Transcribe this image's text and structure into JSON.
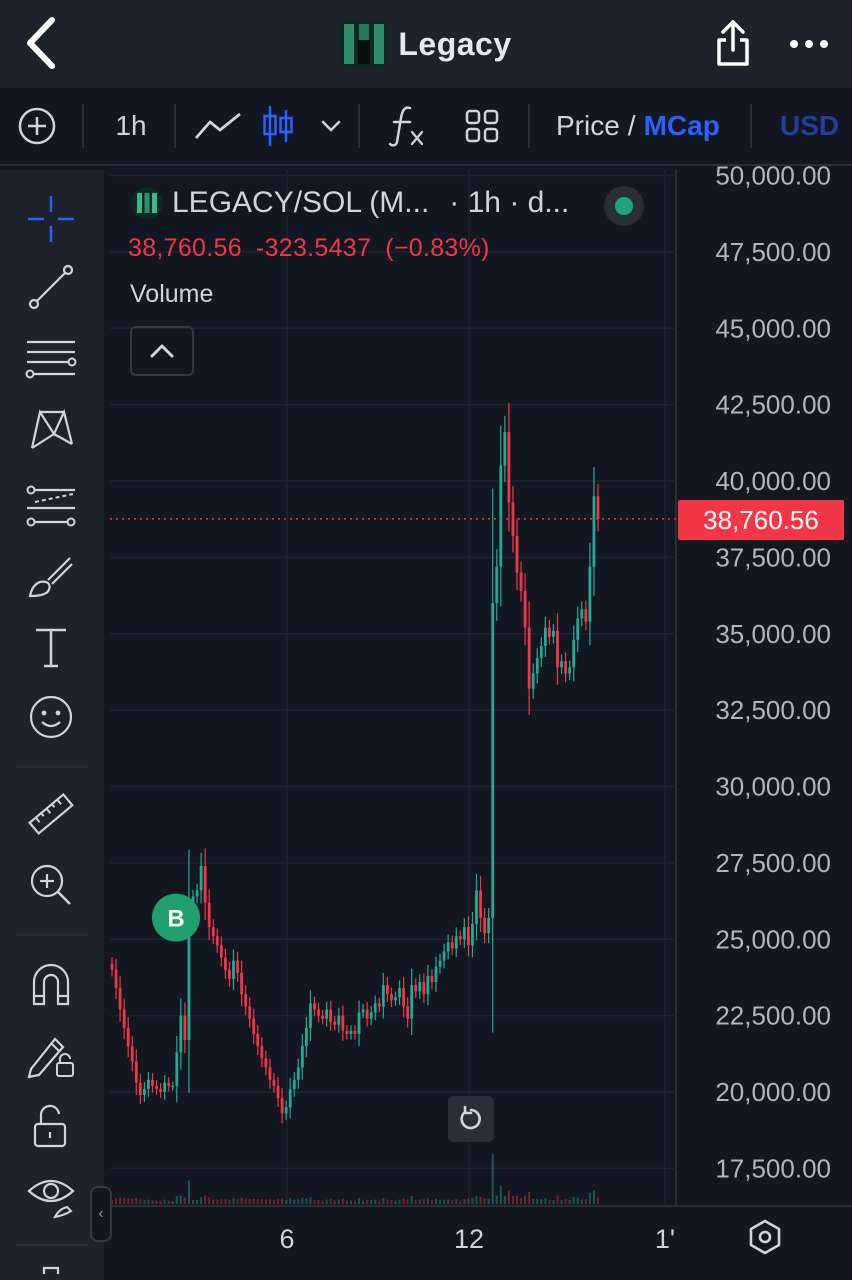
{
  "header": {
    "title": "Legacy",
    "back_icon": "chevron-left-icon",
    "share_icon": "share-icon",
    "more_icon": "more-horizontal-icon"
  },
  "toolbar": {
    "timeframe": "1h",
    "price_label": "Price",
    "separator": "/",
    "mcap_label": "MCap",
    "currency": "USD"
  },
  "legend": {
    "symbol": "LEGACY/SOL (M...",
    "timeframe": "· 1h · d...",
    "last": "38,760.56",
    "change": "-323.5437",
    "change_pct": "(−0.83%)",
    "volume_label": "Volume"
  },
  "chart_data": {
    "type": "candlestick",
    "y_ticks": [
      "50,000.00",
      "47,500.00",
      "45,000.00",
      "42,500.00",
      "40,000.00",
      "37,500.00",
      "35,000.00",
      "32,500.00",
      "30,000.00",
      "27,500.00",
      "25,000.00",
      "22,500.00",
      "20,000.00",
      "17,500.00"
    ],
    "x_ticks": [
      "6",
      "12",
      "1'"
    ],
    "current_price_label": "38,760.56",
    "current_price": 38760.56,
    "marker": {
      "label": "B",
      "price": 24400
    },
    "series_close": [
      24000,
      23400,
      22700,
      22100,
      21500,
      21000,
      20300,
      19900,
      20100,
      20400,
      20200,
      20100,
      20000,
      20300,
      20200,
      20200,
      21300,
      22500,
      21700,
      26200,
      26400,
      26600,
      27400,
      26200,
      25400,
      25100,
      24800,
      24400,
      24000,
      23700,
      24300,
      23900,
      23200,
      22800,
      22400,
      21900,
      21500,
      21100,
      20800,
      20400,
      20200,
      19800,
      19300,
      19500,
      20100,
      20400,
      20800,
      21500,
      22100,
      22900,
      22700,
      22500,
      22400,
      22700,
      22300,
      22200,
      22500,
      22000,
      21900,
      22000,
      21900,
      22600,
      22700,
      22400,
      22600,
      22900,
      22800,
      23500,
      23200,
      23000,
      23100,
      23400,
      22800,
      22400,
      23500,
      23300,
      23600,
      23200,
      23800,
      23600,
      24100,
      24300,
      24600,
      24900,
      24700,
      25100,
      25000,
      25400,
      24800,
      25500,
      26600,
      25700,
      25200,
      25700,
      36000,
      37200,
      40500,
      41600,
      39300,
      38200,
      37000,
      36400,
      35200,
      33200,
      33700,
      34200,
      34600,
      35200,
      34900,
      35100,
      33900,
      34100,
      33700,
      33900,
      34800,
      35500,
      35800,
      35400,
      37200,
      39500,
      38760
    ]
  }
}
